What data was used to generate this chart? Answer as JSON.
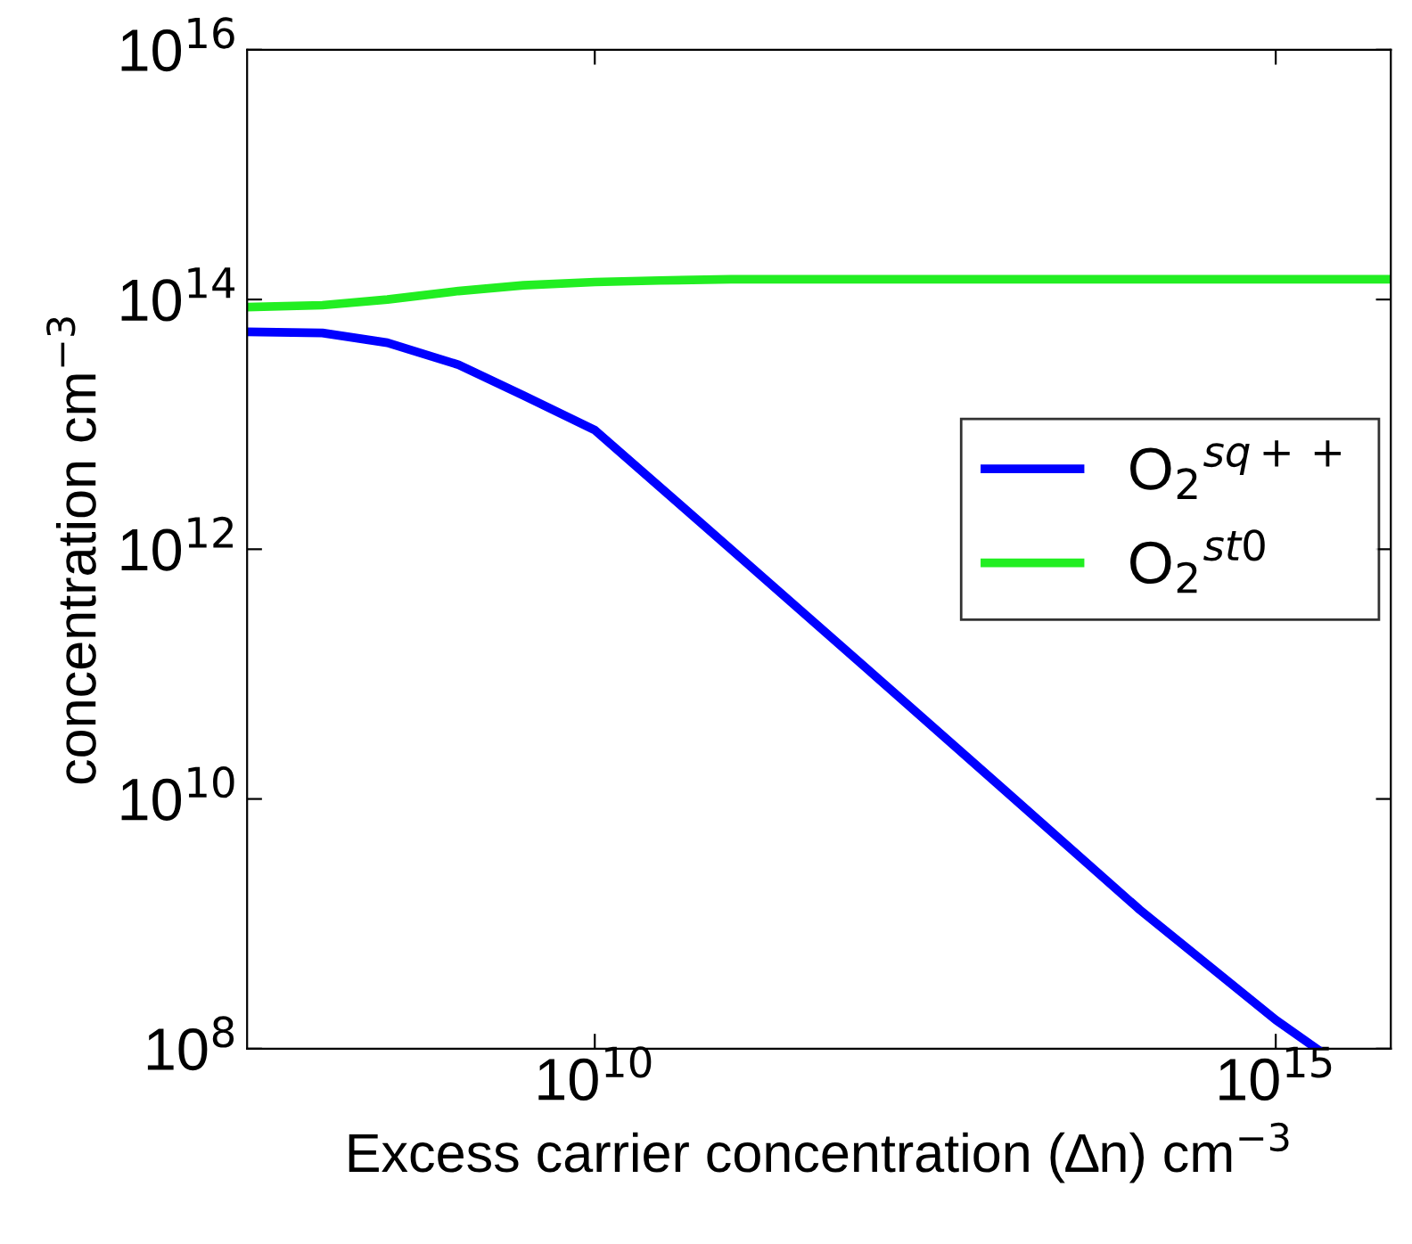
{
  "chart_data": {
    "type": "line",
    "xlabel": "Excess carrier concentration (∆n) cm$^{−3}$",
    "ylabel": "concentration cm$^{−3}$",
    "log": "xy",
    "xlim": [
      28000000.0,
      7000000000000000.0
    ],
    "ylim": [
      100000000.0,
      1e+16
    ],
    "xticks": [
      {
        "value": 10000000000.0,
        "label": "10$^{10}$"
      },
      {
        "value": 1000000000000000.0,
        "label": "10$^{15}$"
      }
    ],
    "yticks": [
      {
        "value": 100000000.0,
        "label": "10$^{8}$"
      },
      {
        "value": 10000000000.0,
        "label": "10$^{10}$"
      },
      {
        "value": 1000000000000.0,
        "label": "10$^{12}$"
      },
      {
        "value": 100000000000000.0,
        "label": "10$^{14}$"
      },
      {
        "value": 1e+16,
        "label": "10$^{16}$"
      }
    ],
    "legend": "right",
    "grid": false,
    "series": [
      {
        "name": "O$_{2}$$^{sq++}$",
        "color": "#0000ff",
        "x": [
          28000000.0,
          100000000.0,
          300000000.0,
          1000000000.0,
          3000000000.0,
          10000000000.0,
          100000000000.0,
          1000000000000.0,
          10000000000000.0,
          100000000000000.0,
          1000000000000000.0,
          2000000000000000.0
        ],
        "values": [
          55000000000000.0,
          54000000000000.0,
          45000000000000.0,
          30000000000000.0,
          17000000000000.0,
          9000000000000.0,
          1000000000000.0,
          110000000000.0,
          12000000000.0,
          1300000000.0,
          170000000.0,
          100000000.0
        ]
      },
      {
        "name": "O$_{2}$$^{st0}$",
        "color": "#22ee22",
        "x": [
          28000000.0,
          100000000.0,
          300000000.0,
          1000000000.0,
          3000000000.0,
          10000000000.0,
          30000000000.0,
          100000000000.0,
          1000000000000.0,
          100000000000000.0,
          7000000000000000.0
        ],
        "values": [
          87000000000000.0,
          90000000000000.0,
          100000000000000.0,
          117000000000000.0,
          130000000000000.0,
          138000000000000.0,
          142000000000000.0,
          145000000000000.0,
          145000000000000.0,
          145000000000000.0,
          145000000000000.0
        ]
      }
    ]
  }
}
